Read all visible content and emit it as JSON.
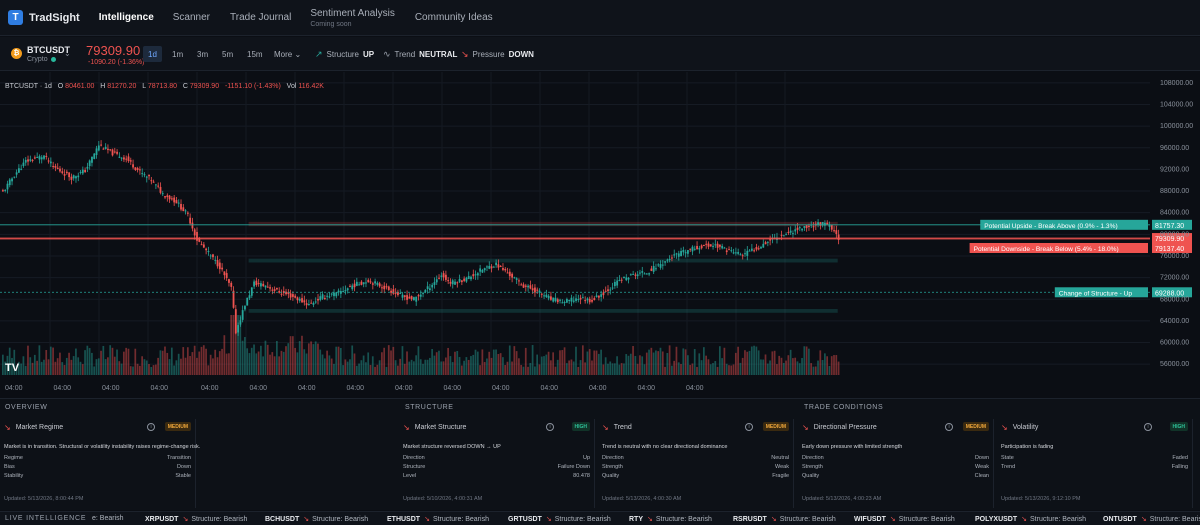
{
  "nav": {
    "brand": "TradSight",
    "items": [
      "Intelligence",
      "Scanner",
      "Trade Journal",
      "Sentiment Analysis",
      "Community Ideas"
    ],
    "soon_label": "Coming soon"
  },
  "toolbar": {
    "symbol": "BTCUSDT",
    "symbol_sub": "Crypto",
    "price": "79309.90",
    "change": "-1090.20 (-1.36%)",
    "timeframes": [
      "1d",
      "1m",
      "3m",
      "5m",
      "15m",
      "More"
    ],
    "indicators": [
      {
        "label": "Structure",
        "value": "UP"
      },
      {
        "label": "Trend",
        "value": "NEUTRAL"
      },
      {
        "label": "Pressure",
        "value": "DOWN"
      }
    ]
  },
  "chart_legend": {
    "sym": "BTCUSDT · 1d",
    "o": "80461.00",
    "h": "81270.20",
    "l": "78713.80",
    "c": "79309.90",
    "chg": "-1151.10 (-1.43%)",
    "vol": "116.42K"
  },
  "chart_data": {
    "type": "candlestick",
    "y_ticks": [
      "108000.00",
      "104000.00",
      "100000.00",
      "96000.00",
      "92000.00",
      "88000.00",
      "84000.00",
      "80000.00",
      "76000.00",
      "72000.00",
      "68000.00",
      "64000.00",
      "60000.00",
      "56000.00"
    ],
    "ylim": [
      54000,
      110000
    ],
    "x_ticks": [
      "04:00",
      "04:00",
      "04:00",
      "04:00",
      "04:00",
      "04:00",
      "04:00",
      "04:00",
      "04:00",
      "04:00",
      "04:00",
      "04:00",
      "04:00",
      "04:00",
      "04:00"
    ],
    "close_path": [
      [
        0,
        87800
      ],
      [
        5,
        91000
      ],
      [
        10,
        93500
      ],
      [
        18,
        94500
      ],
      [
        22,
        92500
      ],
      [
        30,
        90500
      ],
      [
        36,
        91800
      ],
      [
        42,
        96500
      ],
      [
        48,
        95000
      ],
      [
        54,
        94000
      ],
      [
        60,
        91500
      ],
      [
        65,
        90000
      ],
      [
        70,
        87500
      ],
      [
        76,
        86000
      ],
      [
        81,
        83500
      ],
      [
        85,
        79000
      ],
      [
        90,
        76500
      ],
      [
        95,
        74000
      ],
      [
        100,
        70000
      ],
      [
        102,
        62000
      ],
      [
        106,
        67000
      ],
      [
        110,
        71000
      ],
      [
        115,
        70500
      ],
      [
        120,
        69500
      ],
      [
        127,
        68500
      ],
      [
        134,
        67000
      ],
      [
        140,
        68500
      ],
      [
        146,
        69000
      ],
      [
        153,
        70500
      ],
      [
        160,
        71500
      ],
      [
        168,
        70000
      ],
      [
        175,
        68500
      ],
      [
        180,
        68000
      ],
      [
        186,
        70000
      ],
      [
        192,
        72500
      ],
      [
        196,
        71000
      ],
      [
        203,
        71800
      ],
      [
        210,
        73500
      ],
      [
        216,
        74500
      ],
      [
        222,
        72500
      ],
      [
        228,
        70500
      ],
      [
        234,
        69500
      ],
      [
        240,
        68000
      ],
      [
        246,
        67500
      ],
      [
        252,
        68200
      ],
      [
        258,
        67800
      ],
      [
        264,
        69500
      ],
      [
        270,
        71500
      ],
      [
        276,
        72500
      ],
      [
        282,
        73000
      ],
      [
        288,
        74500
      ],
      [
        294,
        76000
      ],
      [
        300,
        77000
      ],
      [
        306,
        77800
      ],
      [
        312,
        78000
      ],
      [
        318,
        77000
      ],
      [
        324,
        76200
      ],
      [
        330,
        77500
      ],
      [
        336,
        79000
      ],
      [
        342,
        80000
      ],
      [
        348,
        81000
      ],
      [
        354,
        81600
      ],
      [
        358,
        82000
      ],
      [
        362,
        81500
      ],
      [
        366,
        79310
      ]
    ],
    "volume_peak_index": 102,
    "levels": [
      {
        "label": "Potential Upside - Break Above",
        "range": "(0.9% - 1.3%)",
        "value": "81757.30",
        "price": 81757.3,
        "color": "#26a69a"
      },
      {
        "label": "",
        "range": "",
        "value": "79309.90",
        "price": 79309.9,
        "color": "#ef5350"
      },
      {
        "label": "Potential Downside - Break Below",
        "range": "(5.4% - 18.0%)",
        "value": "79137.40",
        "price": 79137.4,
        "color": "#ef5350"
      },
      {
        "label": "Change of Structure - Up",
        "range": "",
        "value": "69288.00",
        "price": 69288.0,
        "color": "#26a69a"
      }
    ],
    "zones": [
      {
        "kind": "resistance",
        "from": 81500,
        "to": 82300,
        "start": 108,
        "end": 366
      },
      {
        "kind": "support",
        "from": 74800,
        "to": 75500,
        "start": 108,
        "end": 366
      },
      {
        "kind": "support",
        "from": 65500,
        "to": 66200,
        "start": 108,
        "end": 366
      }
    ]
  },
  "panels": {
    "sections": [
      "OVERVIEW",
      "STRUCTURE",
      "TRADE CONDITIONS"
    ],
    "cards": [
      {
        "title": "Market Regime",
        "badge": "MEDIUM",
        "level": "med",
        "desc": "Market is in transition. Structural or volatility instability raises regime-change risk.",
        "rows": [
          [
            "Regime",
            "Transition"
          ],
          [
            "Bias",
            "Down"
          ],
          [
            "Stability",
            "Stable"
          ]
        ],
        "updated": "Updated: 5/13/2026, 8:00:44 PM"
      },
      {
        "title": "Market Structure",
        "badge": "HIGH",
        "level": "high",
        "desc": "Market structure reversed DOWN → UP",
        "rows": [
          [
            "Direction",
            "Up"
          ],
          [
            "Structure",
            "Failure Down"
          ],
          [
            "Level",
            "80.478"
          ]
        ],
        "updated": "Updated: 5/10/2026, 4:00:31 AM"
      },
      {
        "title": "Trend",
        "badge": "MEDIUM",
        "level": "med",
        "desc": "Trend is neutral with no clear directional dominance",
        "rows": [
          [
            "Direction",
            "Neutral"
          ],
          [
            "Strength",
            "Weak"
          ],
          [
            "Quality",
            "Fragile"
          ]
        ],
        "updated": "Updated: 5/13/2026, 4:00:30 AM"
      },
      {
        "title": "Directional Pressure",
        "badge": "MEDIUM",
        "level": "med",
        "desc": "Early down pressure with limited strength",
        "rows": [
          [
            "Direction",
            "Down"
          ],
          [
            "Strength",
            "Weak"
          ],
          [
            "Quality",
            "Clean"
          ]
        ],
        "updated": "Updated: 5/13/2026, 4:00:23 AM"
      },
      {
        "title": "Volatility",
        "badge": "HIGH",
        "level": "high",
        "desc": "Participation is fading",
        "rows": [
          [
            "State",
            "Faded"
          ],
          [
            "Trend",
            "Falling"
          ]
        ],
        "updated": "Updated: 5/13/2026, 9:12:10 PM"
      }
    ]
  },
  "ticker": {
    "label": "LIVE INTELLIGENCE",
    "items": [
      {
        "sym": "",
        "text": "e: Bearish"
      },
      {
        "sym": "XRPUSDT",
        "text": "Structure: Bearish"
      },
      {
        "sym": "BCHUSDT",
        "text": "Structure: Bearish"
      },
      {
        "sym": "ETHUSDT",
        "text": "Structure: Bearish"
      },
      {
        "sym": "GRTUSDT",
        "text": "Structure: Bearish"
      },
      {
        "sym": "RTY",
        "text": "Structure: Bearish"
      },
      {
        "sym": "RSRUSDT",
        "text": "Structure: Bearish"
      },
      {
        "sym": "WIFUSDT",
        "text": "Structure: Bearish"
      },
      {
        "sym": "POLYXUSDT",
        "text": "Structure: Bearish"
      },
      {
        "sym": "ONTUSDT",
        "text": "Structure: Bearish"
      }
    ]
  }
}
